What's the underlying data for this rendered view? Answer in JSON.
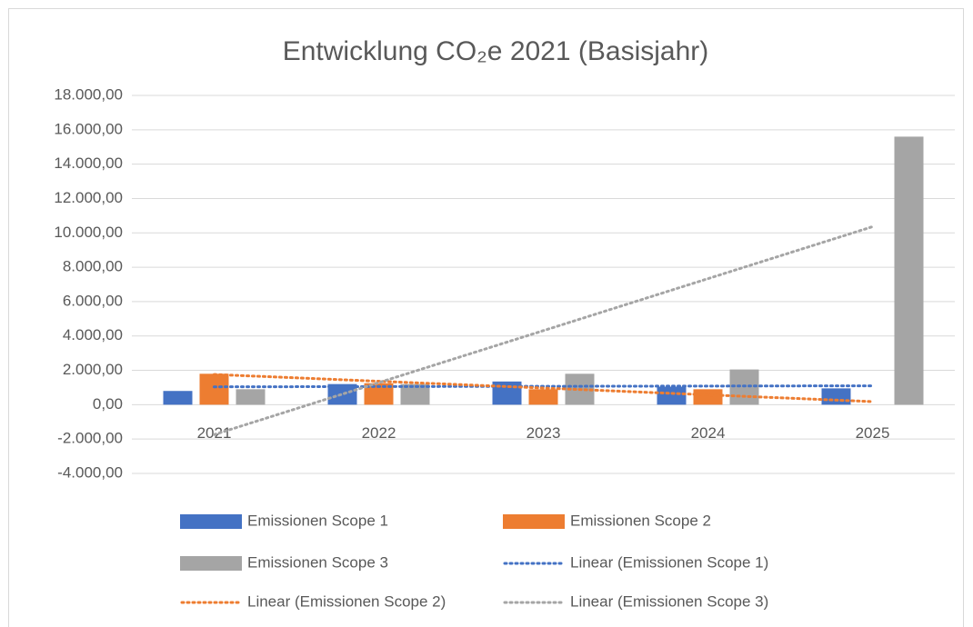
{
  "chart_data": {
    "type": "bar",
    "title": "Entwicklung CO₂e 2021 (Basisjahr)",
    "categories": [
      "2021",
      "2022",
      "2023",
      "2024",
      "2025"
    ],
    "series": [
      {
        "name": "Emissionen Scope 1",
        "color": "#4472c4",
        "values": [
          800,
          1200,
          1350,
          1050,
          950
        ],
        "trendline": {
          "type": "linear",
          "name": "Linear (Emissionen Scope 1)"
        }
      },
      {
        "name": "Emissionen Scope 2",
        "color": "#ed7d31",
        "values": [
          1800,
          1250,
          900,
          900,
          0
        ],
        "trendline": {
          "type": "linear",
          "name": "Linear (Emissionen Scope 2)"
        }
      },
      {
        "name": "Emissionen Scope 3",
        "color": "#a5a5a5",
        "values": [
          900,
          1200,
          1800,
          2050,
          15600
        ],
        "trendline": {
          "type": "linear",
          "name": "Linear (Emissionen Scope 3)"
        }
      }
    ],
    "ylim": [
      -4000,
      18000
    ],
    "yticks": [
      {
        "value": -4000,
        "label": "-4.000,00"
      },
      {
        "value": -2000,
        "label": "-2.000,00"
      },
      {
        "value": 0,
        "label": "0,00"
      },
      {
        "value": 2000,
        "label": "2.000,00"
      },
      {
        "value": 4000,
        "label": "4.000,00"
      },
      {
        "value": 6000,
        "label": "6.000,00"
      },
      {
        "value": 8000,
        "label": "8.000,00"
      },
      {
        "value": 10000,
        "label": "10.000,00"
      },
      {
        "value": 12000,
        "label": "12.000,00"
      },
      {
        "value": 14000,
        "label": "14.000,00"
      },
      {
        "value": 16000,
        "label": "16.000,00"
      },
      {
        "value": 18000,
        "label": "18.000,00"
      }
    ],
    "grid": true,
    "legend": "bottom"
  }
}
